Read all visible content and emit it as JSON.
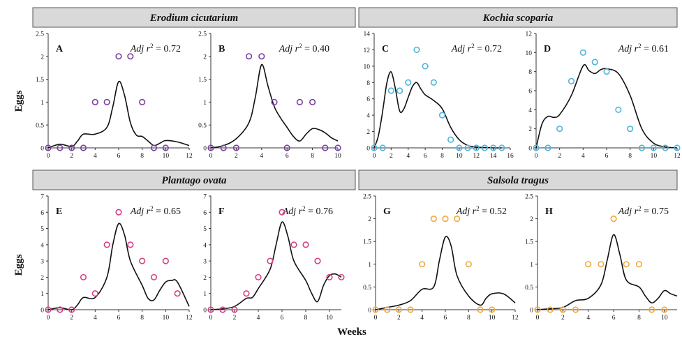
{
  "axes": {
    "ylabel": "Eggs",
    "xlabel": "Weeks"
  },
  "species": [
    {
      "name": "Erodium cicutarium"
    },
    {
      "name": "Kochia scoparia"
    },
    {
      "name": "Plantago ovata"
    },
    {
      "name": "Salsola tragus"
    }
  ],
  "chart_data": [
    {
      "type": "scatter",
      "panel": "A",
      "species": "Erodium cicutarium",
      "r2": "0.72",
      "color": "#7B3FA0",
      "xlim": [
        0,
        12
      ],
      "xticks": [
        0,
        2,
        4,
        6,
        8,
        10,
        12
      ],
      "ylim": [
        0,
        2.5
      ],
      "yticks": [
        "0",
        "0.5",
        "1",
        "1.5",
        "2",
        "2.5"
      ],
      "points": [
        [
          0,
          0
        ],
        [
          1,
          0
        ],
        [
          2,
          0
        ],
        [
          3,
          0
        ],
        [
          4,
          1
        ],
        [
          5,
          1
        ],
        [
          6,
          2
        ],
        [
          7,
          2
        ],
        [
          8,
          1
        ],
        [
          9,
          0
        ],
        [
          10,
          0
        ]
      ],
      "curve": [
        [
          0,
          0
        ],
        [
          1,
          0.08
        ],
        [
          2,
          0.03
        ],
        [
          2.5,
          0.15
        ],
        [
          3,
          0.3
        ],
        [
          4,
          0.3
        ],
        [
          5,
          0.45
        ],
        [
          5.5,
          0.9
        ],
        [
          6,
          1.45
        ],
        [
          6.5,
          1.15
        ],
        [
          7,
          0.55
        ],
        [
          7.5,
          0.28
        ],
        [
          8,
          0.25
        ],
        [
          8.5,
          0.15
        ],
        [
          9,
          0.05
        ],
        [
          9.5,
          0.1
        ],
        [
          10,
          0.16
        ],
        [
          11,
          0.13
        ],
        [
          12,
          0.05
        ]
      ]
    },
    {
      "type": "scatter",
      "panel": "B",
      "species": "Erodium cicutarium",
      "r2": "0.40",
      "color": "#7B3FA0",
      "xlim": [
        0,
        10
      ],
      "xticks": [
        0,
        2,
        4,
        6,
        8,
        10
      ],
      "ylim": [
        0,
        2.5
      ],
      "yticks": [
        "0",
        "0.5",
        "1",
        "1.5",
        "2",
        "2.5"
      ],
      "points": [
        [
          0,
          0
        ],
        [
          1,
          0
        ],
        [
          2,
          0
        ],
        [
          3,
          2
        ],
        [
          4,
          2
        ],
        [
          5,
          1
        ],
        [
          6,
          0
        ],
        [
          7,
          1
        ],
        [
          8,
          1
        ],
        [
          9,
          0
        ],
        [
          10,
          0
        ]
      ],
      "curve": [
        [
          0,
          0
        ],
        [
          1,
          0.05
        ],
        [
          2,
          0.2
        ],
        [
          3,
          0.55
        ],
        [
          3.5,
          1.1
        ],
        [
          4,
          1.82
        ],
        [
          4.5,
          1.35
        ],
        [
          5,
          0.9
        ],
        [
          5.5,
          0.65
        ],
        [
          6,
          0.45
        ],
        [
          6.5,
          0.25
        ],
        [
          7,
          0.15
        ],
        [
          7.5,
          0.3
        ],
        [
          8,
          0.42
        ],
        [
          8.5,
          0.4
        ],
        [
          9,
          0.33
        ],
        [
          9.5,
          0.22
        ],
        [
          10,
          0.15
        ]
      ]
    },
    {
      "type": "scatter",
      "panel": "C",
      "species": "Kochia scoparia",
      "r2": "0.72",
      "color": "#4FB5DB",
      "xlim": [
        0,
        16
      ],
      "xticks": [
        0,
        2,
        4,
        6,
        8,
        10,
        12,
        14,
        16
      ],
      "ylim": [
        0,
        14
      ],
      "yticks": [
        "0",
        "2",
        "4",
        "6",
        "8",
        "10",
        "12",
        "14"
      ],
      "points": [
        [
          0,
          0
        ],
        [
          1,
          0
        ],
        [
          2,
          7
        ],
        [
          3,
          7
        ],
        [
          4,
          8
        ],
        [
          5,
          12
        ],
        [
          6,
          10
        ],
        [
          7,
          8
        ],
        [
          8,
          4
        ],
        [
          9,
          1
        ],
        [
          10,
          0
        ],
        [
          11,
          0
        ],
        [
          12,
          0
        ],
        [
          13,
          0
        ],
        [
          14,
          0
        ],
        [
          15,
          0
        ]
      ],
      "curve": [
        [
          0,
          0
        ],
        [
          0.5,
          1.5
        ],
        [
          1,
          4.5
        ],
        [
          1.5,
          8
        ],
        [
          2,
          9.3
        ],
        [
          2.5,
          7.2
        ],
        [
          3,
          4.5
        ],
        [
          3.5,
          4.8
        ],
        [
          4,
          6.2
        ],
        [
          4.5,
          7.5
        ],
        [
          5,
          8
        ],
        [
          5.5,
          7.2
        ],
        [
          6,
          6.5
        ],
        [
          7,
          5.8
        ],
        [
          8,
          4.8
        ],
        [
          9,
          2.5
        ],
        [
          10,
          1
        ],
        [
          11,
          0.3
        ],
        [
          12,
          0.1
        ],
        [
          14,
          0
        ],
        [
          15,
          0
        ]
      ]
    },
    {
      "type": "scatter",
      "panel": "D",
      "species": "Kochia scoparia",
      "r2": "0.61",
      "color": "#4FB5DB",
      "xlim": [
        0,
        12
      ],
      "xticks": [
        0,
        2,
        4,
        6,
        8,
        10,
        12
      ],
      "ylim": [
        0,
        12
      ],
      "yticks": [
        "0",
        "2",
        "4",
        "6",
        "8",
        "10",
        "12"
      ],
      "points": [
        [
          0,
          0
        ],
        [
          1,
          0
        ],
        [
          2,
          2
        ],
        [
          3,
          7
        ],
        [
          4,
          10
        ],
        [
          5,
          9
        ],
        [
          6,
          8
        ],
        [
          7,
          4
        ],
        [
          8,
          2
        ],
        [
          9,
          0
        ],
        [
          10,
          0
        ],
        [
          11,
          0
        ],
        [
          12,
          0
        ]
      ],
      "curve": [
        [
          0,
          0
        ],
        [
          0.5,
          2.5
        ],
        [
          1,
          3.3
        ],
        [
          1.5,
          3.2
        ],
        [
          2,
          3.5
        ],
        [
          3,
          5.5
        ],
        [
          4,
          8.6
        ],
        [
          4.5,
          8.1
        ],
        [
          5,
          7.8
        ],
        [
          5.5,
          8.2
        ],
        [
          6,
          8.3
        ],
        [
          7,
          7.8
        ],
        [
          8,
          5.5
        ],
        [
          9,
          2
        ],
        [
          10,
          0.5
        ],
        [
          11,
          0.1
        ],
        [
          12,
          0
        ]
      ]
    },
    {
      "type": "scatter",
      "panel": "E",
      "species": "Plantago ovata",
      "r2": "0.65",
      "color": "#D63F85",
      "xlim": [
        0,
        12
      ],
      "xticks": [
        0,
        2,
        4,
        6,
        8,
        10,
        12
      ],
      "ylim": [
        0,
        7
      ],
      "yticks": [
        "0",
        "1",
        "2",
        "3",
        "4",
        "5",
        "6",
        "7"
      ],
      "points": [
        [
          0,
          0
        ],
        [
          1,
          0
        ],
        [
          2,
          0
        ],
        [
          3,
          2
        ],
        [
          4,
          1
        ],
        [
          5,
          4
        ],
        [
          6,
          6
        ],
        [
          7,
          4
        ],
        [
          8,
          3
        ],
        [
          9,
          2
        ],
        [
          10,
          3
        ],
        [
          11,
          1
        ]
      ],
      "curve": [
        [
          0,
          0
        ],
        [
          1,
          0.12
        ],
        [
          2,
          0
        ],
        [
          2.5,
          0.3
        ],
        [
          3,
          0.75
        ],
        [
          4,
          0.75
        ],
        [
          5,
          2
        ],
        [
          5.5,
          4
        ],
        [
          6,
          5.3
        ],
        [
          6.5,
          4.6
        ],
        [
          7,
          3
        ],
        [
          8,
          1.5
        ],
        [
          8.5,
          0.7
        ],
        [
          9,
          0.6
        ],
        [
          9.5,
          1.2
        ],
        [
          10,
          1.7
        ],
        [
          10.5,
          1.8
        ],
        [
          11,
          1.7
        ],
        [
          12,
          0.2
        ]
      ]
    },
    {
      "type": "scatter",
      "panel": "F",
      "species": "Plantago ovata",
      "r2": "0.76",
      "color": "#D63F85",
      "xlim": [
        0,
        11
      ],
      "xticks": [
        0,
        2,
        4,
        6,
        8,
        10
      ],
      "ylim": [
        0,
        7
      ],
      "yticks": [
        "0",
        "1",
        "2",
        "3",
        "4",
        "5",
        "6",
        "7"
      ],
      "points": [
        [
          0,
          0
        ],
        [
          1,
          0
        ],
        [
          2,
          0
        ],
        [
          3,
          1
        ],
        [
          4,
          2
        ],
        [
          5,
          3
        ],
        [
          6,
          6
        ],
        [
          7,
          4
        ],
        [
          8,
          4
        ],
        [
          9,
          3
        ],
        [
          10,
          2
        ],
        [
          11,
          2
        ]
      ],
      "curve": [
        [
          0,
          0
        ],
        [
          1,
          0.05
        ],
        [
          2,
          0.2
        ],
        [
          3,
          0.7
        ],
        [
          3.5,
          0.75
        ],
        [
          4,
          1.3
        ],
        [
          5,
          2.5
        ],
        [
          5.5,
          4
        ],
        [
          6,
          5.4
        ],
        [
          6.5,
          4.5
        ],
        [
          7,
          3
        ],
        [
          8,
          1.8
        ],
        [
          8.5,
          1
        ],
        [
          9,
          0.5
        ],
        [
          9.5,
          1.5
        ],
        [
          10,
          2.1
        ],
        [
          10.5,
          2.2
        ],
        [
          11,
          2
        ]
      ]
    },
    {
      "type": "scatter",
      "panel": "G",
      "species": "Salsola tragus",
      "r2": "0.52",
      "color": "#F2A93B",
      "xlim": [
        0,
        12
      ],
      "xticks": [
        0,
        2,
        4,
        6,
        8,
        10,
        12
      ],
      "ylim": [
        0,
        2.5
      ],
      "yticks": [
        "0",
        "0.5",
        "1",
        "1.5",
        "2",
        "2.5"
      ],
      "points": [
        [
          0,
          0
        ],
        [
          1,
          0
        ],
        [
          2,
          0
        ],
        [
          3,
          0
        ],
        [
          4,
          1
        ],
        [
          5,
          2
        ],
        [
          6,
          2
        ],
        [
          7,
          2
        ],
        [
          8,
          1
        ],
        [
          9,
          0
        ],
        [
          10,
          0
        ]
      ],
      "curve": [
        [
          0,
          0
        ],
        [
          1,
          0.05
        ],
        [
          2,
          0.1
        ],
        [
          3,
          0.2
        ],
        [
          4,
          0.45
        ],
        [
          5,
          0.5
        ],
        [
          5.5,
          1.1
        ],
        [
          6,
          1.6
        ],
        [
          6.5,
          1.4
        ],
        [
          7,
          0.75
        ],
        [
          8,
          0.3
        ],
        [
          9,
          0.1
        ],
        [
          9.5,
          0.25
        ],
        [
          10,
          0.35
        ],
        [
          11,
          0.35
        ],
        [
          12,
          0.15
        ]
      ]
    },
    {
      "type": "scatter",
      "panel": "H",
      "species": "Salsola tragus",
      "r2": "0.75",
      "color": "#F2A93B",
      "xlim": [
        0,
        11
      ],
      "xticks": [
        0,
        2,
        4,
        6,
        8,
        10
      ],
      "ylim": [
        0,
        2.5
      ],
      "yticks": [
        "0",
        "0.5",
        "1",
        "1.5",
        "2",
        "2.5"
      ],
      "points": [
        [
          0,
          0
        ],
        [
          1,
          0
        ],
        [
          2,
          0
        ],
        [
          3,
          0
        ],
        [
          4,
          1
        ],
        [
          5,
          1
        ],
        [
          6,
          2
        ],
        [
          7,
          1
        ],
        [
          8,
          1
        ],
        [
          9,
          0
        ],
        [
          10,
          0
        ]
      ],
      "curve": [
        [
          0,
          0
        ],
        [
          1,
          0.02
        ],
        [
          2,
          0.05
        ],
        [
          3,
          0.2
        ],
        [
          4,
          0.25
        ],
        [
          5,
          0.55
        ],
        [
          5.5,
          1.1
        ],
        [
          6,
          1.65
        ],
        [
          6.5,
          1.2
        ],
        [
          7,
          0.65
        ],
        [
          8,
          0.5
        ],
        [
          8.5,
          0.3
        ],
        [
          9,
          0.15
        ],
        [
          9.5,
          0.25
        ],
        [
          10,
          0.42
        ],
        [
          10.5,
          0.35
        ],
        [
          11,
          0.3
        ]
      ]
    }
  ]
}
